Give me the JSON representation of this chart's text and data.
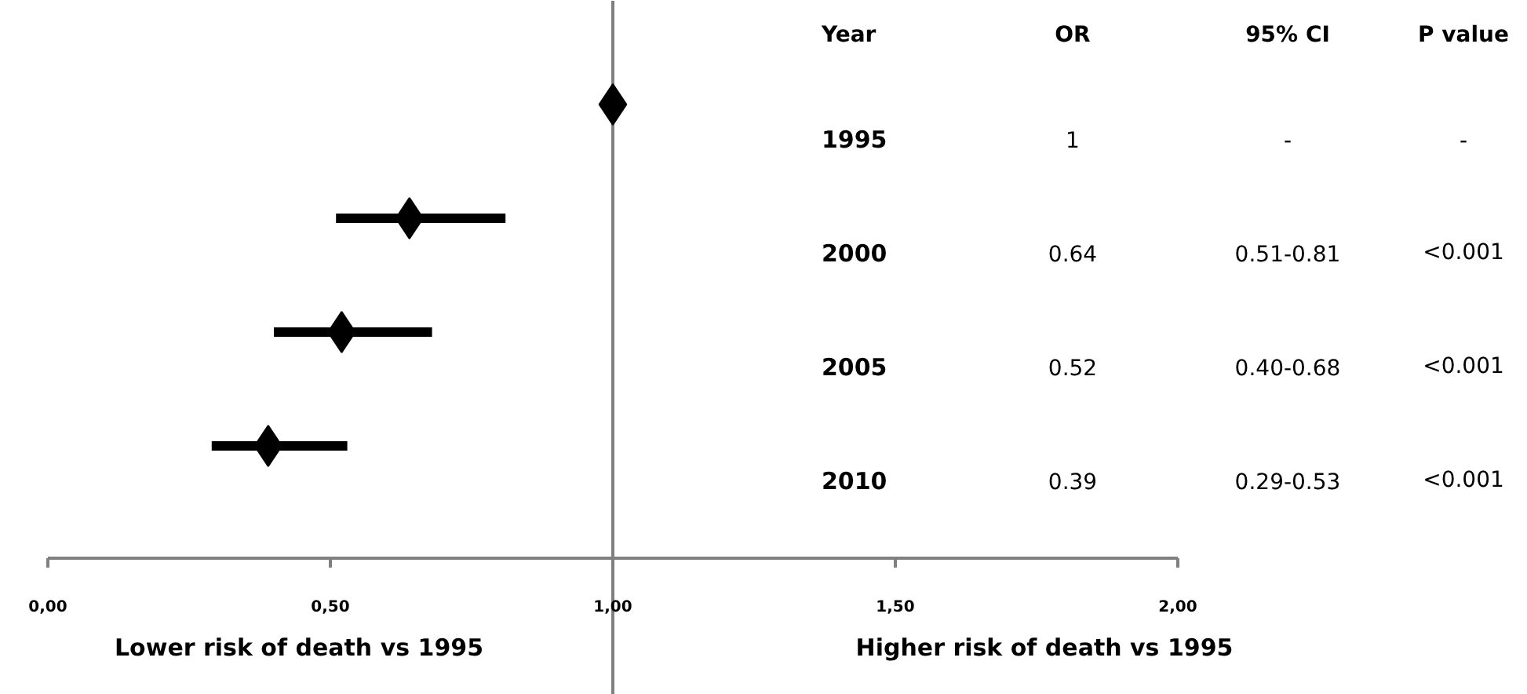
{
  "chart_data": {
    "type": "scatter",
    "orientation": "horizontal",
    "marker": "diamond",
    "categories": [
      "1995",
      "2000",
      "2005",
      "2010"
    ],
    "series": [
      {
        "color": "#000000",
        "values": [
          1,
          0.64,
          0.52,
          0.39
        ],
        "errors": [
          null,
          [
            0.51,
            0.81
          ],
          [
            0.4,
            0.68
          ],
          [
            0.29,
            0.53
          ]
        ]
      }
    ],
    "xlim": [
      0,
      2
    ],
    "xticks": [
      {
        "value": 0,
        "label": "0,00"
      },
      {
        "value": 0.5,
        "label": "0,50"
      },
      {
        "value": 1,
        "label": "1,00"
      },
      {
        "value": 1.5,
        "label": "1,50"
      },
      {
        "value": 2,
        "label": "2,00"
      }
    ],
    "ref_lines": [
      {
        "axis": "x",
        "value": 1,
        "color": "#808080"
      }
    ],
    "grid": false,
    "annotations": [
      "Year",
      "OR",
      "95% CI",
      "P value",
      "Lower risk of death vs 1995",
      "Higher risk of death vs 1995",
      "1",
      "0.64",
      "0.52",
      "0.39",
      "-",
      "0.51-0.81",
      "0.40-0.68",
      "0.29-0.53",
      "-",
      "<0.001",
      "<0.001",
      "<0.001"
    ]
  }
}
